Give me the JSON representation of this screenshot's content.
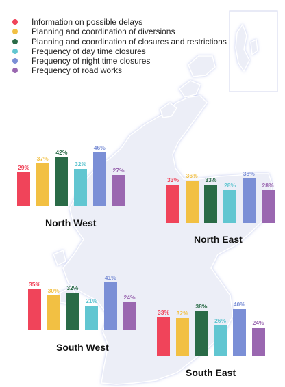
{
  "chart_data": {
    "type": "bar",
    "categories": [
      "North West",
      "North East",
      "South West",
      "South East"
    ],
    "series": [
      {
        "name": "Information on possible delays",
        "color": "#f0445a",
        "values": [
          29,
          33,
          35,
          33
        ]
      },
      {
        "name": "Planning and coordination of diversions",
        "color": "#f2c043",
        "values": [
          37,
          36,
          30,
          32
        ]
      },
      {
        "name": "Planning and coordination of closures and restrictions",
        "color": "#2a6b47",
        "values": [
          42,
          33,
          32,
          38
        ]
      },
      {
        "name": "Frequency of day time closures",
        "color": "#61c6d1",
        "values": [
          32,
          28,
          21,
          26
        ]
      },
      {
        "name": "Frequency of night time closures",
        "color": "#7b8fd6",
        "values": [
          46,
          38,
          41,
          40
        ]
      },
      {
        "name": "Frequency of road works",
        "color": "#9a67b0",
        "values": [
          27,
          28,
          24,
          24
        ]
      }
    ],
    "value_suffix": "%",
    "legend_position": "top-left",
    "background_map_color": "#eceef7"
  }
}
